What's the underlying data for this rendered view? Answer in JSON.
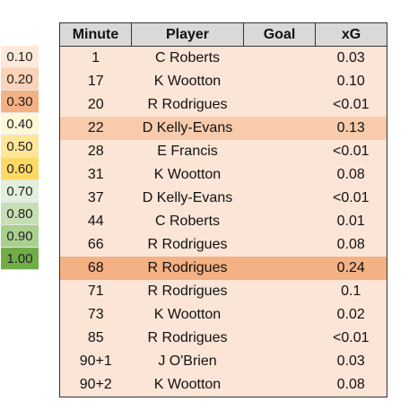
{
  "legend": [
    {
      "label": "0.10",
      "color": "#fde9d9"
    },
    {
      "label": "0.20",
      "color": "#fad3b8"
    },
    {
      "label": "0.30",
      "color": "#f4b183"
    },
    {
      "label": "0.40",
      "color": "#fff7d8"
    },
    {
      "label": "0.50",
      "color": "#ffe699"
    },
    {
      "label": "0.60",
      "color": "#ffd966"
    },
    {
      "label": "0.70",
      "color": "#e2efda"
    },
    {
      "label": "0.80",
      "color": "#c6e0b4"
    },
    {
      "label": "0.90",
      "color": "#a9d08e"
    },
    {
      "label": "1.00",
      "color": "#70ad47"
    }
  ],
  "table": {
    "headers": [
      "Minute",
      "Player",
      "Goal",
      "xG"
    ],
    "rows": [
      {
        "minute": "1",
        "player": "C Roberts",
        "goal": "",
        "xg": "0.03",
        "highlight": 0
      },
      {
        "minute": "17",
        "player": "K Wootton",
        "goal": "",
        "xg": "0.10",
        "highlight": 0
      },
      {
        "minute": "20",
        "player": "R Rodrigues",
        "goal": "",
        "xg": "<0.01",
        "highlight": 0
      },
      {
        "minute": "22",
        "player": "D Kelly-Evans",
        "goal": "",
        "xg": "0.13",
        "highlight": 1
      },
      {
        "minute": "28",
        "player": "E Francis",
        "goal": "",
        "xg": "<0.01",
        "highlight": 0
      },
      {
        "minute": "31",
        "player": "K Wootton",
        "goal": "",
        "xg": "0.08",
        "highlight": 0
      },
      {
        "minute": "37",
        "player": "D Kelly-Evans",
        "goal": "",
        "xg": "<0.01",
        "highlight": 0
      },
      {
        "minute": "44",
        "player": "C Roberts",
        "goal": "",
        "xg": "0.01",
        "highlight": 0
      },
      {
        "minute": "66",
        "player": "R Rodrigues",
        "goal": "",
        "xg": "0.08",
        "highlight": 0
      },
      {
        "minute": "68",
        "player": "R Rodrigues",
        "goal": "",
        "xg": "0.24",
        "highlight": 2
      },
      {
        "minute": "71",
        "player": "R Rodrigues",
        "goal": "",
        "xg": "0.1",
        "highlight": 0
      },
      {
        "minute": "73",
        "player": "K Wootton",
        "goal": "",
        "xg": "0.02",
        "highlight": 0
      },
      {
        "minute": "85",
        "player": "R Rodrigues",
        "goal": "",
        "xg": "<0.01",
        "highlight": 0
      },
      {
        "minute": "90+1",
        "player": "J O'Brien",
        "goal": "",
        "xg": "0.03",
        "highlight": 0
      },
      {
        "minute": "90+2",
        "player": "K Wootton",
        "goal": "",
        "xg": "0.08",
        "highlight": 0
      }
    ]
  }
}
